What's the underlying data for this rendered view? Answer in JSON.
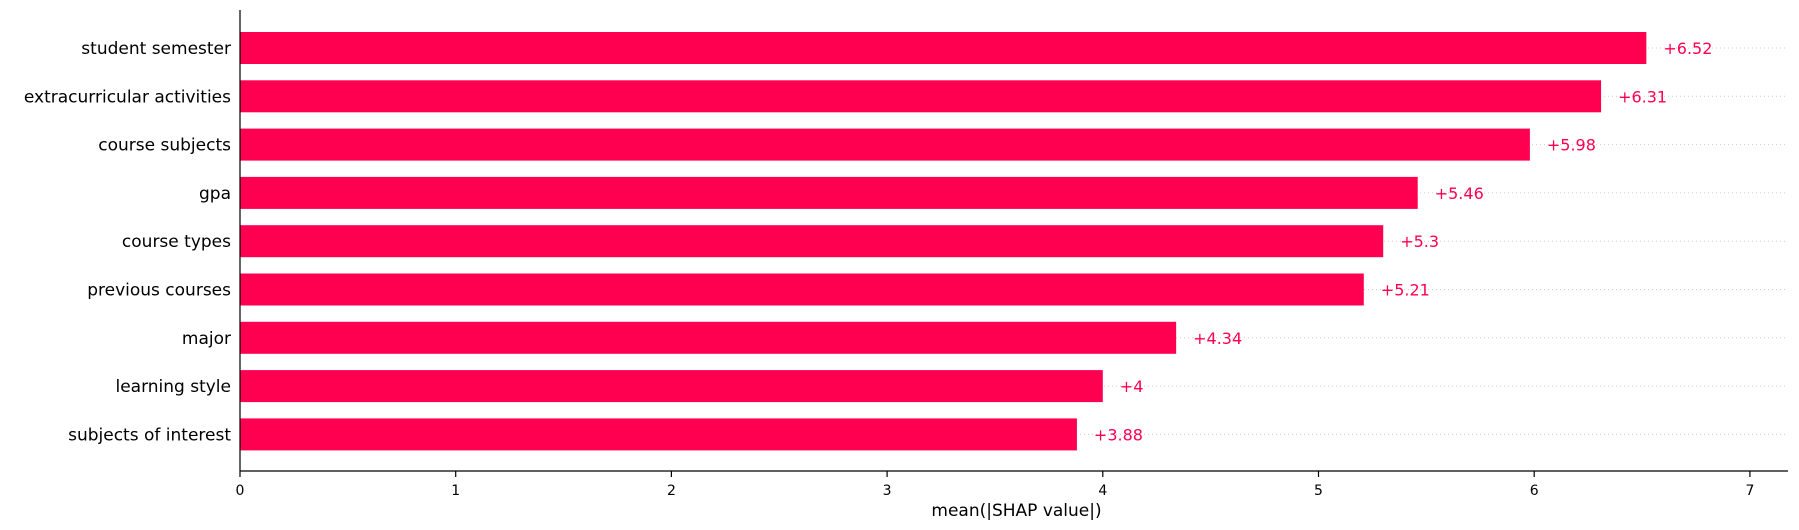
{
  "chart_data": {
    "type": "bar",
    "orientation": "horizontal",
    "categories": [
      "student semester",
      "extracurricular activities",
      "course subjects",
      "gpa",
      "course types",
      "previous courses",
      "major",
      "learning style",
      "subjects of interest"
    ],
    "values": [
      6.52,
      6.31,
      5.98,
      5.46,
      5.3,
      5.21,
      4.34,
      4,
      3.88
    ],
    "value_labels": [
      "+6.52",
      "+6.31",
      "+5.98",
      "+5.46",
      "+5.3",
      "+5.21",
      "+4.34",
      "+4",
      "+3.88"
    ],
    "xlabel": "mean(|SHAP value|)",
    "ylabel": "",
    "title": "",
    "xlim": [
      0,
      7.2
    ],
    "xticks": [
      0,
      1,
      2,
      3,
      4,
      5,
      6,
      7
    ],
    "xtick_labels": [
      "0",
      "1",
      "2",
      "3",
      "4",
      "5",
      "6",
      "7"
    ],
    "grid": "dotted row guides",
    "legend": "none",
    "bar_color": "#ff0051",
    "label_color": "#ff0051"
  }
}
